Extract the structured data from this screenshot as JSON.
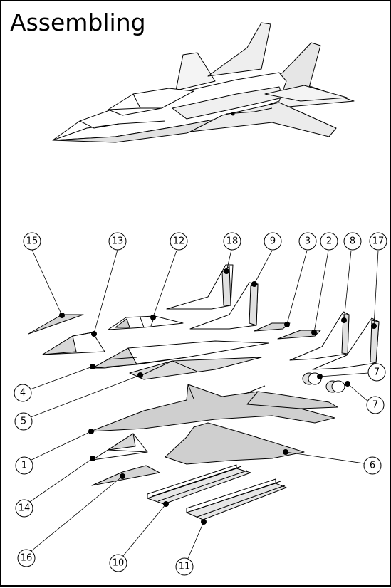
{
  "title": "Assembling",
  "callouts": [
    {
      "id": "15",
      "label": "15"
    },
    {
      "id": "13",
      "label": "13"
    },
    {
      "id": "12",
      "label": "12"
    },
    {
      "id": "18",
      "label": "18"
    },
    {
      "id": "9",
      "label": "9"
    },
    {
      "id": "3",
      "label": "3"
    },
    {
      "id": "2",
      "label": "2"
    },
    {
      "id": "8",
      "label": "8"
    },
    {
      "id": "17",
      "label": "17"
    },
    {
      "id": "7a",
      "label": "7"
    },
    {
      "id": "7b",
      "label": "7"
    },
    {
      "id": "4",
      "label": "4"
    },
    {
      "id": "5",
      "label": "5"
    },
    {
      "id": "1",
      "label": "1"
    },
    {
      "id": "6",
      "label": "6"
    },
    {
      "id": "14",
      "label": "14"
    },
    {
      "id": "16",
      "label": "16"
    },
    {
      "id": "10",
      "label": "10"
    },
    {
      "id": "11",
      "label": "11"
    }
  ]
}
